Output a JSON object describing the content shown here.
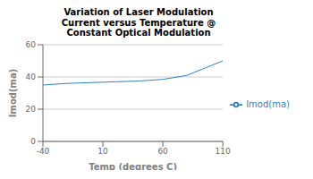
{
  "chart_data": {
    "type": "line",
    "title": "Variation of Laser Modulation\nCurrent versus Temperature @\nConstant Optical Modulation",
    "xlabel": "Temp (degrees C)",
    "ylabel": "Imod(ma)",
    "x": [
      -40,
      -20,
      0,
      20,
      40,
      60,
      80,
      100,
      110
    ],
    "series": [
      {
        "name": "Imod(ma)",
        "values": [
          35,
          36,
          36.5,
          37,
          37.5,
          38.5,
          41,
          47,
          50
        ]
      }
    ],
    "xlim": [
      -40,
      110
    ],
    "ylim": [
      0,
      60
    ],
    "xticks": [
      -40,
      10,
      60,
      110
    ],
    "yticks": [
      0,
      20,
      40,
      60
    ],
    "grid": true,
    "legend": "right"
  }
}
